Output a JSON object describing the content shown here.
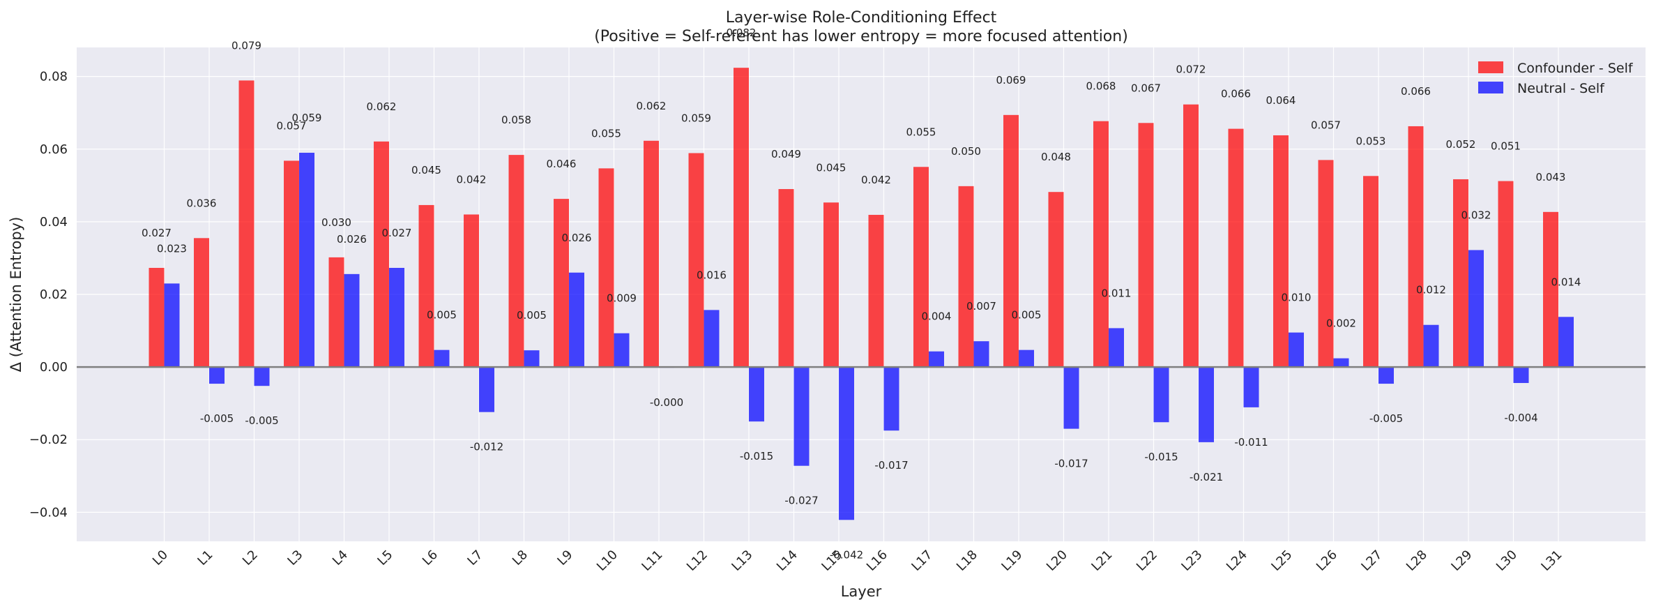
{
  "chart_data": {
    "type": "bar",
    "title": "Layer-wise Role-Conditioning Effect",
    "subtitle": "(Positive = Self-referent has lower entropy = more focused attention)",
    "xlabel": "Layer",
    "ylabel": "Δ (Attention Entropy)",
    "categories": [
      "L0",
      "L1",
      "L2",
      "L3",
      "L4",
      "L5",
      "L6",
      "L7",
      "L8",
      "L9",
      "L10",
      "L11",
      "L12",
      "L13",
      "L14",
      "L15",
      "L16",
      "L17",
      "L18",
      "L19",
      "L20",
      "L21",
      "L22",
      "L23",
      "L24",
      "L25",
      "L26",
      "L27",
      "L28",
      "L29",
      "L30",
      "L31"
    ],
    "ylim": [
      -0.048,
      0.088
    ],
    "yticks": [
      -0.04,
      -0.02,
      0.0,
      0.02,
      0.04,
      0.06,
      0.08
    ],
    "ytick_labels": [
      "−0.04",
      "−0.02",
      "0.00",
      "0.02",
      "0.04",
      "0.06",
      "0.08"
    ],
    "grid": true,
    "legend_position": "top-right",
    "series": [
      {
        "name": "Confounder - Self",
        "color": "#ff0000",
        "values": [
          0.0273,
          0.0355,
          0.0789,
          0.0568,
          0.0302,
          0.0621,
          0.0446,
          0.042,
          0.0584,
          0.0463,
          0.0547,
          0.0623,
          0.0589,
          0.0824,
          0.049,
          0.0453,
          0.0419,
          0.0551,
          0.0498,
          0.0694,
          0.0482,
          0.0677,
          0.0672,
          0.0723,
          0.0656,
          0.0638,
          0.057,
          0.0526,
          0.0663,
          0.0517,
          0.0512,
          0.0427
        ],
        "labels": [
          "0.027",
          "0.036",
          "0.079",
          "0.057",
          "0.030",
          "0.062",
          "0.045",
          "0.042",
          "0.058",
          "0.046",
          "0.055",
          "0.062",
          "0.059",
          "0.082",
          "0.049",
          "0.045",
          "0.042",
          "0.055",
          "0.050",
          "0.069",
          "0.048",
          "0.068",
          "0.067",
          "0.072",
          "0.066",
          "0.064",
          "0.057",
          "0.053",
          "0.066",
          "0.052",
          "0.051",
          "0.043"
        ]
      },
      {
        "name": "Neutral - Self",
        "color": "#0000ff",
        "values": [
          0.023,
          -0.0046,
          -0.0052,
          0.059,
          0.0256,
          0.0273,
          0.0047,
          -0.0124,
          0.0046,
          0.026,
          0.0093,
          -0.0002,
          0.0157,
          -0.015,
          -0.0272,
          -0.0421,
          -0.0175,
          0.0043,
          0.0071,
          0.0047,
          -0.017,
          0.0107,
          -0.0152,
          -0.0207,
          -0.0111,
          0.0095,
          0.0024,
          -0.0046,
          0.0116,
          0.0322,
          -0.0044,
          0.0138
        ],
        "labels": [
          "0.023",
          "-0.005",
          "-0.005",
          "0.059",
          "0.026",
          "0.027",
          "0.005",
          "-0.012",
          "0.005",
          "0.026",
          "0.009",
          "-0.000",
          "0.016",
          "-0.015",
          "-0.027",
          "-0.042",
          "-0.017",
          "0.004",
          "0.007",
          "0.005",
          "-0.017",
          "0.011",
          "-0.015",
          "-0.021",
          "-0.011",
          "0.010",
          "0.002",
          "-0.005",
          "0.012",
          "0.032",
          "-0.004",
          "0.014"
        ]
      }
    ]
  }
}
